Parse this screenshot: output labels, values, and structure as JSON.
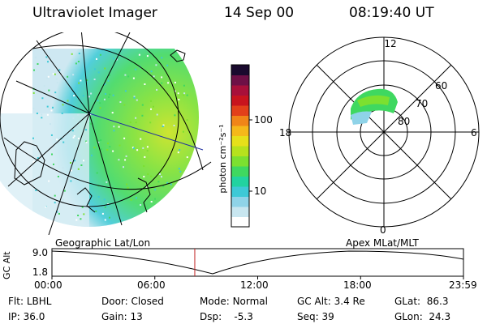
{
  "header": {
    "title": "Ultraviolet Imager",
    "date": "14 Sep 00",
    "time": "08:19:40 UT"
  },
  "left_panel": {
    "label": "Geographic Lat/Lon"
  },
  "colorbar": {
    "unit_label": "photon cm⁻²s⁻¹",
    "ticks": [
      "100",
      "10"
    ],
    "scale": "log",
    "colors": [
      "#ffffff",
      "#c8e6f0",
      "#8fd3e8",
      "#3ec9d6",
      "#22d3a0",
      "#3fd860",
      "#7ce030",
      "#b6e21d",
      "#e6e01a",
      "#f5b81a",
      "#f08518",
      "#e2401a",
      "#c8141e",
      "#a8103a",
      "#6e1046",
      "#1a0a2e"
    ]
  },
  "polar_panel": {
    "label": "Apex MLat/MLT",
    "mlt_labels": {
      "top": "12",
      "left": "18",
      "right": "6",
      "bottom": "0"
    },
    "lat_labels": [
      "60",
      "70",
      "80"
    ]
  },
  "timeline": {
    "ylabel": "GC Alt",
    "yticks": [
      "9.0",
      "1.8"
    ],
    "xticks": [
      "00:00",
      "06:00",
      "12:00",
      "18:00",
      "23:59"
    ],
    "marker_time_hours": 8.33
  },
  "info": {
    "row1": [
      {
        "label": "Flt:",
        "value": "LBHL"
      },
      {
        "label": "Door:",
        "value": "Closed"
      },
      {
        "label": "Mode:",
        "value": "Normal"
      },
      {
        "label": "GC Alt:",
        "value": "3.4 Re"
      },
      {
        "label": "GLat:",
        "value": "86.3"
      }
    ],
    "row2": [
      {
        "label": "IP:",
        "value": "36.0"
      },
      {
        "label": "Gain:",
        "value": "13"
      },
      {
        "label": "Dsp:",
        "value": "-5.3"
      },
      {
        "label": "Seq:",
        "value": "39"
      },
      {
        "label": "GLon:",
        "value": "24.3"
      }
    ]
  }
}
